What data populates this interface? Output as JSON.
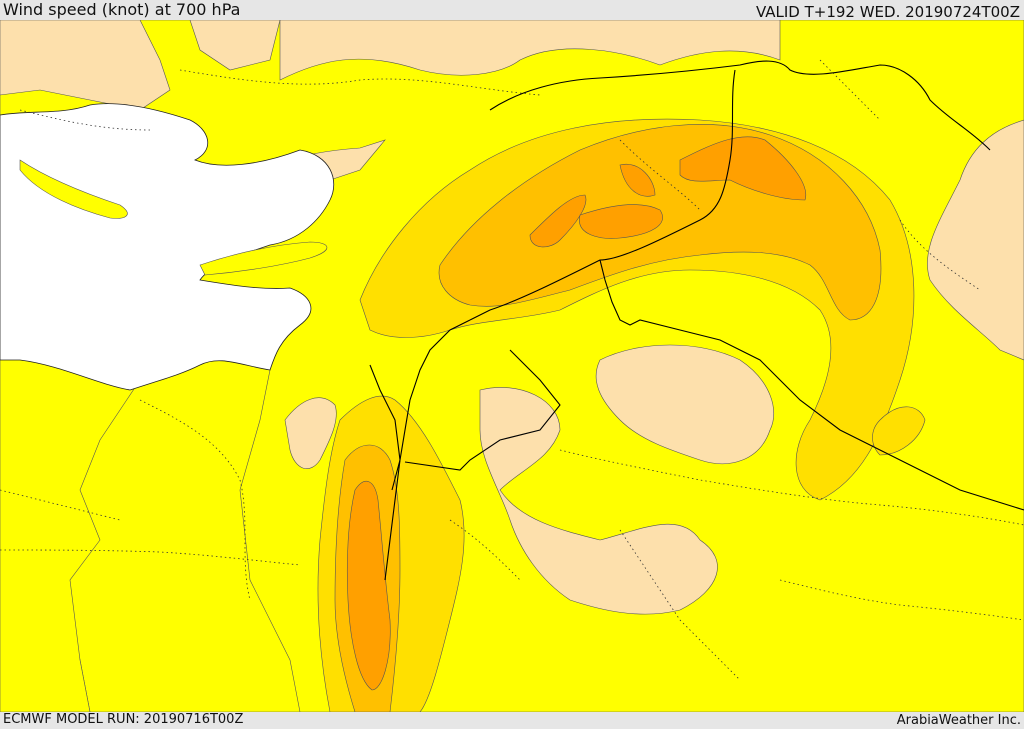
{
  "header": {
    "title": "Wind speed (knot) at 700 hPa",
    "valid_time": "VALID T+192 WED. 20190724T00Z"
  },
  "footer": {
    "model_run": "ECMWF MODEL RUN: 20190716T00Z",
    "credit": "ArabiaWeather Inc."
  },
  "colors": {
    "land": "#fde0ac",
    "sea": "#ffffff",
    "shade_1": "#ffff00",
    "shade_2": "#ffe000",
    "shade_3": "#ffc000",
    "shade_4": "#ffa000",
    "boundary": "#000000"
  }
}
